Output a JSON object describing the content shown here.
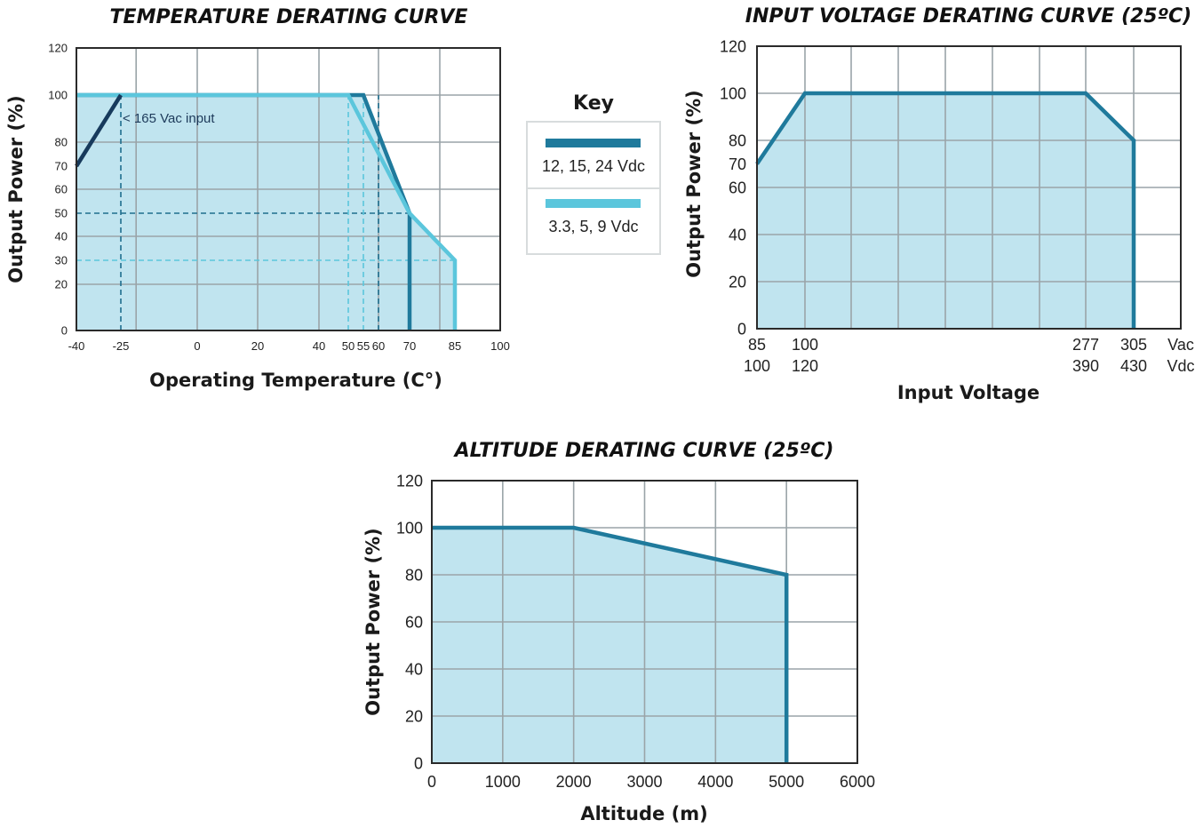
{
  "chart_data": [
    {
      "type": "line",
      "title": "TEMPERATURE DERATING CURVE",
      "xlabel": "Operating Temperature (C°)",
      "ylabel": "Output Power (%)",
      "xlim": [
        -40,
        100
      ],
      "ylim": [
        0,
        120
      ],
      "x_ticks": [
        -40,
        -25,
        0,
        20,
        40,
        50,
        55,
        60,
        70,
        85,
        100
      ],
      "x_tick_labels": [
        "-40",
        "-25",
        "0",
        "20",
        "40",
        "50",
        "55",
        "60",
        "70",
        "85",
        "100"
      ],
      "y_ticks": [
        0,
        20,
        30,
        40,
        50,
        60,
        70,
        80,
        100,
        120
      ],
      "y_tick_labels": [
        "0",
        "20",
        "30",
        "40",
        "50",
        "60",
        "70",
        "80",
        "100",
        "120"
      ],
      "grid": true,
      "series": [
        {
          "name": "12, 15, 24 Vdc",
          "color": "#1f7a9c",
          "x": [
            -40,
            55,
            70,
            70
          ],
          "y": [
            100,
            100,
            50,
            0
          ]
        },
        {
          "name": "3.3, 5, 9 Vdc",
          "color": "#5bc6dc",
          "x": [
            -40,
            50,
            70,
            85,
            85
          ],
          "y": [
            100,
            100,
            50,
            30,
            0
          ]
        },
        {
          "name": "< 165 Vac input",
          "color": "#173a5c",
          "x": [
            -40,
            -25
          ],
          "y": [
            70,
            100
          ]
        }
      ],
      "reference_lines": [
        {
          "x": [
            -25,
            -25
          ],
          "y": [
            0,
            100
          ],
          "color": "#1f6e8e"
        },
        {
          "x": [
            -40,
            70
          ],
          "y": [
            50,
            50
          ],
          "color": "#1f6e8e"
        },
        {
          "x": [
            -40,
            85
          ],
          "y": [
            30,
            30
          ],
          "color": "#5bc6dc"
        },
        {
          "x": [
            50,
            50
          ],
          "y": [
            0,
            100
          ],
          "color": "#5bc6dc"
        },
        {
          "x": [
            55,
            55
          ],
          "y": [
            0,
            100
          ],
          "color": "#5bc6dc"
        },
        {
          "x": [
            60,
            60
          ],
          "y": [
            0,
            100
          ],
          "color": "#1f6e8e"
        }
      ],
      "annotation": "< 165 Vac input"
    },
    {
      "type": "line",
      "title": "INPUT VOLTAGE DERATING CURVE (25ºC)",
      "xlabel": "Input Voltage",
      "ylabel": "Output Power (%)",
      "ylim": [
        0,
        120
      ],
      "x_positions": [
        85,
        100,
        277,
        305
      ],
      "x_tick_labels_vac": [
        "85",
        "100",
        "277",
        "305",
        "Vac"
      ],
      "x_tick_labels_vdc": [
        "100",
        "120",
        "390",
        "430",
        "Vdc"
      ],
      "y_ticks": [
        0,
        20,
        40,
        60,
        70,
        80,
        100,
        120
      ],
      "y_tick_labels": [
        "0",
        "20",
        "40",
        "60",
        "70",
        "80",
        "100",
        "120"
      ],
      "grid": true,
      "series": [
        {
          "color": "#1f7a9c",
          "x": [
            85,
            100,
            277,
            305,
            305
          ],
          "y": [
            70,
            100,
            100,
            80,
            0
          ]
        }
      ]
    },
    {
      "type": "line",
      "title": "ALTITUDE DERATING CURVE (25ºC)",
      "xlabel": "Altitude (m)",
      "ylabel": "Output Power (%)",
      "xlim": [
        0,
        6000
      ],
      "ylim": [
        0,
        120
      ],
      "x_ticks": [
        0,
        1000,
        2000,
        3000,
        4000,
        5000,
        6000
      ],
      "x_tick_labels": [
        "0",
        "1000",
        "2000",
        "3000",
        "4000",
        "5000",
        "6000"
      ],
      "y_ticks": [
        0,
        20,
        40,
        60,
        80,
        100,
        120
      ],
      "y_tick_labels": [
        "0",
        "20",
        "40",
        "60",
        "80",
        "100",
        "120"
      ],
      "grid": true,
      "series": [
        {
          "color": "#1f7a9c",
          "x": [
            0,
            2000,
            5000,
            5000
          ],
          "y": [
            100,
            100,
            80,
            0
          ]
        }
      ]
    }
  ],
  "key": {
    "title": "Key",
    "items": [
      {
        "label": "12, 15, 24 Vdc",
        "color": "#1f7a9c"
      },
      {
        "label": "3.3, 5, 9 Vdc",
        "color": "#5bc6dc"
      }
    ]
  },
  "colors": {
    "fill": "#bde3ee",
    "grid": "#9aa4a8",
    "frame": "#2a2a2a"
  }
}
